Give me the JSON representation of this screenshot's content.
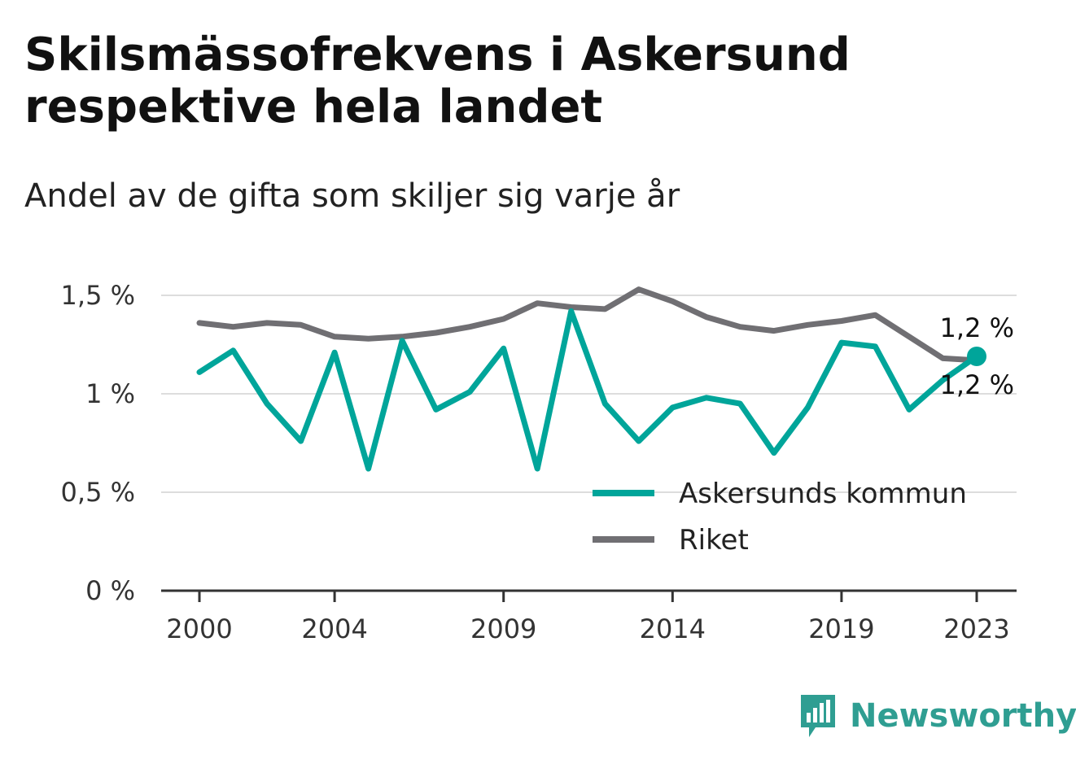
{
  "title": "Skilsmässofrekvens i Askersund respektive hela landet",
  "subtitle": "Andel av de gifta som skiljer sig varje år",
  "brand": {
    "name": "Newsworthy",
    "color": "#2f9e92",
    "icon": "bar-chart-speech-bubble-icon"
  },
  "chart_data": {
    "type": "line",
    "x": [
      2000,
      2001,
      2002,
      2003,
      2004,
      2005,
      2006,
      2007,
      2008,
      2009,
      2010,
      2011,
      2012,
      2013,
      2014,
      2015,
      2016,
      2017,
      2018,
      2019,
      2020,
      2021,
      2022,
      2023
    ],
    "x_tick_labels": [
      "2000",
      "2004",
      "2009",
      "2014",
      "2019",
      "2023"
    ],
    "y_ticks": [
      0,
      0.5,
      1,
      1.5
    ],
    "y_tick_labels": [
      "0 %",
      "0,5 %",
      "1 %",
      "1,5 %"
    ],
    "ylim": [
      0,
      1.5
    ],
    "grid": true,
    "legend_position": "bottom-right",
    "series": [
      {
        "name": "Askersunds kommun",
        "color": "#00a59a",
        "values": [
          1.11,
          1.22,
          0.95,
          0.76,
          1.21,
          0.62,
          1.27,
          0.92,
          1.01,
          1.23,
          0.62,
          1.42,
          0.95,
          0.76,
          0.93,
          0.98,
          0.95,
          0.7,
          0.93,
          1.26,
          1.24,
          0.92,
          1.07,
          1.19
        ],
        "end_label": "1,2 %"
      },
      {
        "name": "Riket",
        "color": "#706f73",
        "values": [
          1.36,
          1.34,
          1.36,
          1.35,
          1.29,
          1.28,
          1.29,
          1.31,
          1.34,
          1.38,
          1.46,
          1.44,
          1.43,
          1.53,
          1.47,
          1.39,
          1.34,
          1.32,
          1.35,
          1.37,
          1.4,
          1.29,
          1.18,
          1.17
        ],
        "end_label": "1,2 %"
      }
    ]
  }
}
